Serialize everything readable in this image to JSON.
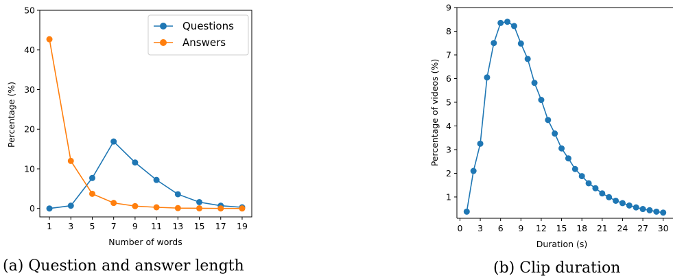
{
  "colors": {
    "questions": "#1f77b4",
    "answers": "#ff7f0e"
  },
  "captions": {
    "a": "(a) Question and answer length",
    "b": "(b) Clip duration"
  },
  "chart_data": [
    {
      "type": "line",
      "xlabel": "Number of words",
      "ylabel": "Percentage (%)",
      "x": [
        1,
        3,
        5,
        7,
        9,
        11,
        13,
        15,
        17,
        19
      ],
      "xticks": [
        "1",
        "3",
        "5",
        "7",
        "9",
        "11",
        "13",
        "15",
        "17",
        "19"
      ],
      "yticks": [
        "0",
        "10",
        "20",
        "30",
        "40",
        "50"
      ],
      "ylim": [
        0,
        50
      ],
      "legend": "top-right",
      "grid": false,
      "series": [
        {
          "name": "Questions",
          "values": [
            0.0,
            0.7,
            7.7,
            16.9,
            11.6,
            7.2,
            3.6,
            1.6,
            0.7,
            0.3
          ]
        },
        {
          "name": "Answers",
          "values": [
            42.7,
            12.0,
            3.7,
            1.4,
            0.6,
            0.3,
            0.1,
            0.05,
            0.02,
            0.01
          ]
        }
      ]
    },
    {
      "type": "line",
      "xlabel": "Duration (s)",
      "ylabel": "Percentage of videos (%)",
      "xticks": [
        "0",
        "3",
        "6",
        "9",
        "12",
        "15",
        "18",
        "21",
        "24",
        "27",
        "30"
      ],
      "yticks": [
        "1",
        "2",
        "3",
        "4",
        "5",
        "6",
        "7",
        "8",
        "9"
      ],
      "xlim": [
        0,
        30
      ],
      "ylim": [
        0.1,
        9
      ],
      "grid": false,
      "series": [
        {
          "name": "",
          "x": [
            1,
            2,
            3,
            4,
            5,
            6,
            7,
            8,
            9,
            10,
            11,
            12,
            13,
            14,
            15,
            16,
            17,
            18,
            19,
            20,
            21,
            22,
            23,
            24,
            25,
            26,
            27,
            28,
            29,
            30
          ],
          "values": [
            0.38,
            2.1,
            3.25,
            6.05,
            7.5,
            8.35,
            8.4,
            8.22,
            7.48,
            6.83,
            5.82,
            5.1,
            4.25,
            3.68,
            3.05,
            2.63,
            2.18,
            1.88,
            1.58,
            1.37,
            1.15,
            0.99,
            0.84,
            0.74,
            0.64,
            0.56,
            0.49,
            0.44,
            0.38,
            0.34
          ]
        }
      ]
    }
  ]
}
